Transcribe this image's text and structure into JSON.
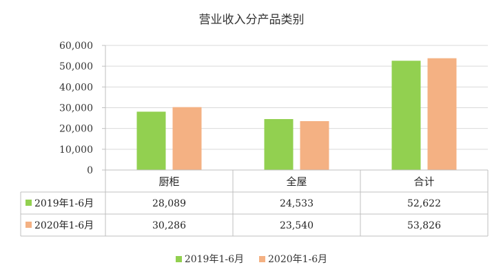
{
  "chart_data": {
    "type": "bar",
    "title": "营业收入分产品类别",
    "categories": [
      "厨柜",
      "全屋",
      "合计"
    ],
    "series": [
      {
        "name": "2019年1-6月",
        "color": "#92d050",
        "values": [
          28089,
          24533,
          52622
        ],
        "labels": [
          "28,089",
          "24,533",
          "52,622"
        ]
      },
      {
        "name": "2020年1-6月",
        "color": "#f4b183",
        "values": [
          30286,
          23540,
          53826
        ],
        "labels": [
          "30,286",
          "23,540",
          "53,826"
        ]
      }
    ],
    "ylim": [
      0,
      60000
    ],
    "yticks": [
      0,
      10000,
      20000,
      30000,
      40000,
      50000,
      60000
    ],
    "ytick_labels": [
      "0",
      "10,000",
      "20,000",
      "30,000",
      "40,000",
      "50,000",
      "60,000"
    ],
    "grid": true,
    "data_table": true,
    "legend": "bottom"
  }
}
